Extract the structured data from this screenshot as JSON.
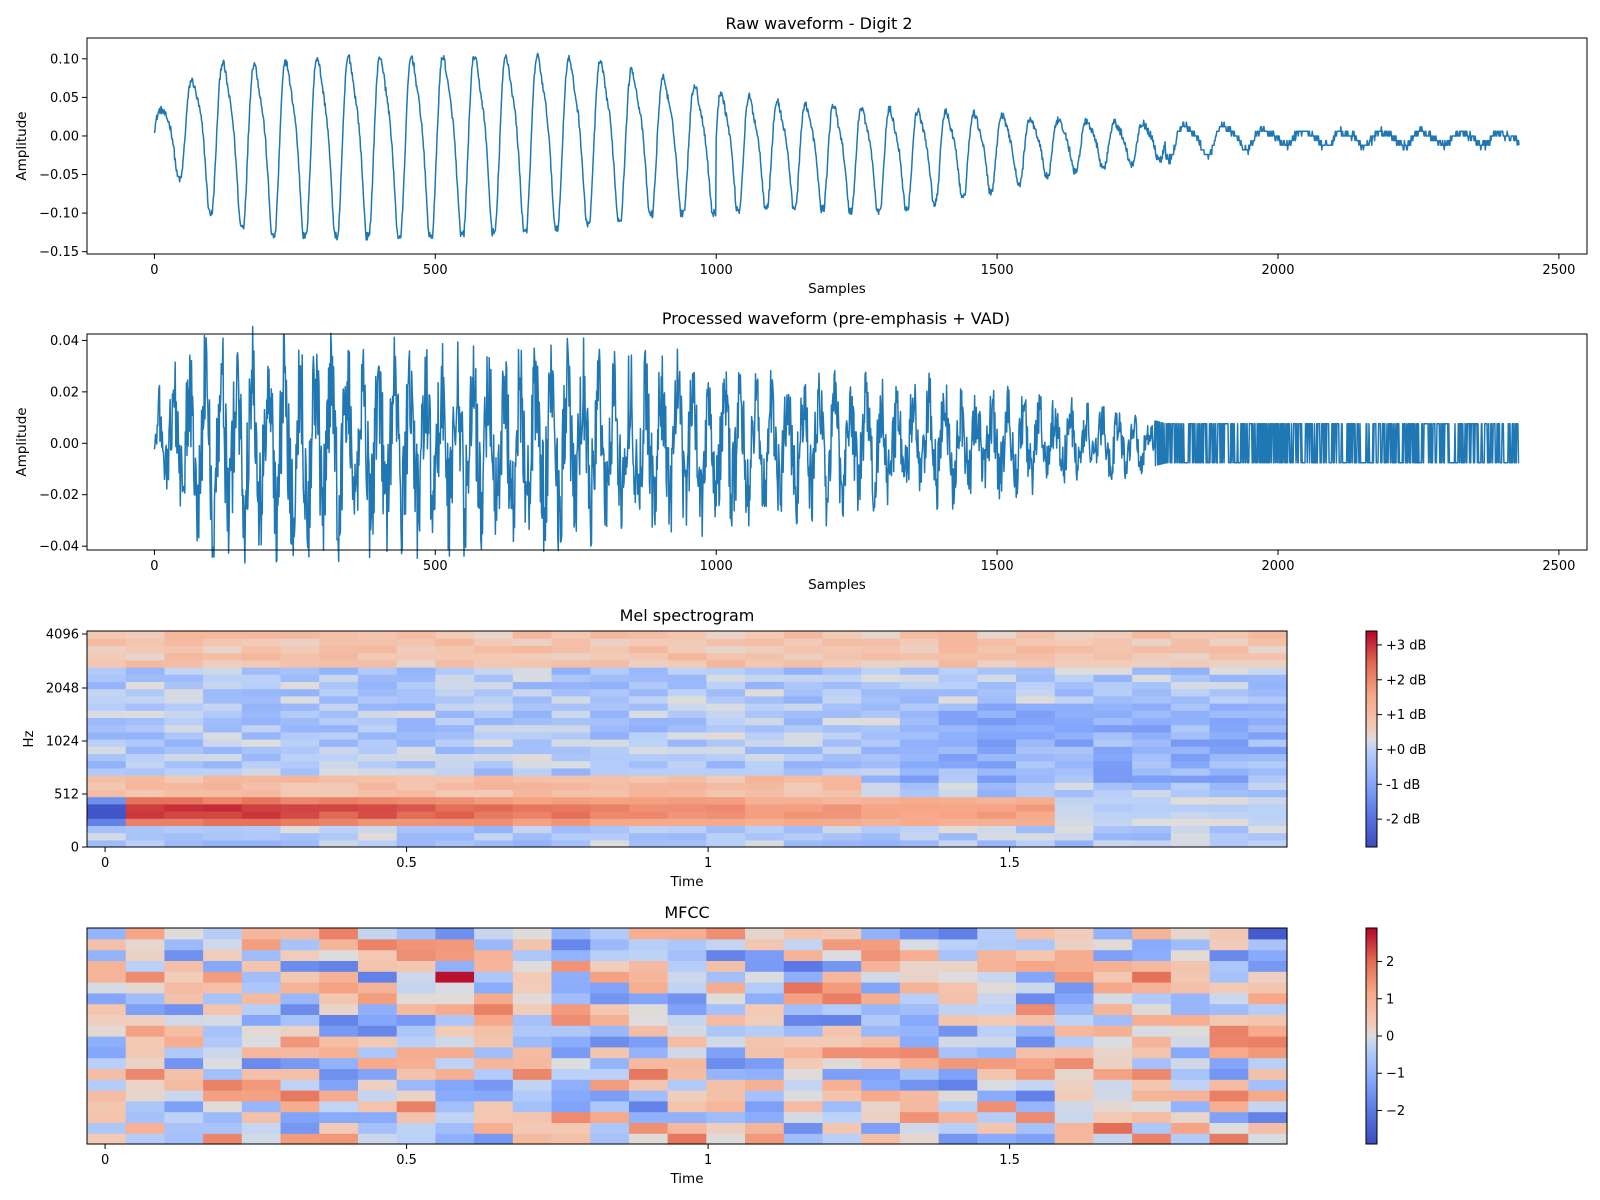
{
  "chart_data": [
    {
      "type": "line",
      "title": "Raw waveform - Digit 2",
      "xlabel": "Samples",
      "ylabel": "Amplitude",
      "xlim": [
        -120,
        2550
      ],
      "ylim": [
        -0.153,
        0.127
      ],
      "xticks": [
        0,
        500,
        1000,
        1500,
        2000,
        2500
      ],
      "xtick_labels": [
        "0",
        "500",
        "1000",
        "1500",
        "2000",
        "2500"
      ],
      "yticks": [
        0.1,
        0.05,
        0.0,
        -0.05,
        -0.1,
        -0.15
      ],
      "ytick_labels": [
        "0.10",
        "0.05",
        "0.00",
        "−0.05",
        "−0.10",
        "−0.15"
      ],
      "n_samples": 2430,
      "envelope": {
        "x": [
          0,
          50,
          100,
          200,
          300,
          500,
          700,
          800,
          900,
          1000,
          1100,
          1300,
          1500,
          1600,
          1800,
          2000,
          2430
        ],
        "peak": [
          0.03,
          0.07,
          0.11,
          0.11,
          0.12,
          0.12,
          0.12,
          0.11,
          0.09,
          0.07,
          0.055,
          0.045,
          0.035,
          0.025,
          0.02,
          0.008,
          0.005
        ],
        "trough": [
          -0.02,
          -0.06,
          -0.1,
          -0.13,
          -0.13,
          -0.13,
          -0.12,
          -0.11,
          -0.1,
          -0.1,
          -0.09,
          -0.1,
          -0.07,
          -0.05,
          -0.03,
          -0.012,
          -0.012
        ]
      },
      "series": [
        {
          "values_note": "",
          "color": "#1f77b4"
        }
      ]
    },
    {
      "type": "line",
      "title": "Processed waveform (pre-emphasis + VAD)",
      "xlabel": "Samples",
      "ylabel": "Amplitude",
      "xlim": [
        -120,
        2550
      ],
      "ylim": [
        -0.0415,
        0.0425
      ],
      "xticks": [
        0,
        500,
        1000,
        1500,
        2000,
        2500
      ],
      "xtick_labels": [
        "0",
        "500",
        "1000",
        "1500",
        "2000",
        "2500"
      ],
      "yticks": [
        0.04,
        0.02,
        0.0,
        -0.02,
        -0.04
      ],
      "ytick_labels": [
        "0.04",
        "0.02",
        "0.00",
        "−0.02",
        "−0.04"
      ],
      "n_samples": 2430,
      "envelope": {
        "x": [
          0,
          100,
          300,
          500,
          700,
          900,
          1100,
          1300,
          1500,
          1700,
          1800,
          2000,
          2430
        ],
        "peak": [
          0.03,
          0.039,
          0.037,
          0.037,
          0.036,
          0.032,
          0.025,
          0.025,
          0.02,
          0.014,
          0.008,
          0.008,
          0.008
        ],
        "trough": [
          -0.01,
          -0.039,
          -0.039,
          -0.039,
          -0.038,
          -0.033,
          -0.03,
          -0.025,
          -0.02,
          -0.014,
          -0.008,
          -0.008,
          -0.008
        ]
      },
      "series": [
        {
          "color": "#1f77b4"
        }
      ]
    },
    {
      "type": "heatmap",
      "title": "Mel spectrogram",
      "xlabel": "Time",
      "ylabel": "Hz",
      "xlim": [
        -0.03,
        1.96
      ],
      "xticks": [
        0,
        0.5,
        1,
        1.5
      ],
      "xtick_labels": [
        "0",
        "0.5",
        "1",
        "1.5"
      ],
      "yticks_labels": [
        "0",
        "512",
        "1024",
        "2048",
        "4096"
      ],
      "n_frames": 31,
      "n_bands": 30,
      "colormap": "coolwarm",
      "colorbar_range": [
        -2.8,
        3.4
      ],
      "colorbar_ticks": [
        3,
        2,
        1,
        0,
        -1,
        -2
      ],
      "colorbar_tick_labels": [
        "+3 dB",
        "+2 dB",
        "+1 dB",
        "+0 dB",
        "-1 dB",
        "-2 dB"
      ],
      "structure": "strong low-frequency band (~250 Hz) at +2 to +3 dB for t 0.05–0.6 s, fading to +1 dB by 1.4 s; mid/upper bands mostly 0 to -1.5 dB; darker blue cells near 1024 Hz at 1.0 s and near 1024/512 Hz at 1.6–1.9 s"
    },
    {
      "type": "heatmap",
      "title": "MFCC",
      "xlabel": "Time",
      "xlim": [
        -0.03,
        1.96
      ],
      "xticks": [
        0,
        0.5,
        1,
        1.5
      ],
      "xtick_labels": [
        "0",
        "0.5",
        "1",
        "1.5"
      ],
      "n_frames": 31,
      "n_coefficients": 20,
      "colormap": "coolwarm",
      "colorbar_range": [
        -2.9,
        2.9
      ],
      "colorbar_ticks": [
        2,
        1,
        0,
        -1,
        -2
      ],
      "colorbar_tick_labels": [
        "2",
        "1",
        "0",
        "−1",
        "−2"
      ]
    }
  ],
  "colors": {
    "line": "#1f77b4",
    "cmap_low": "#3b4cc0",
    "cmap_mid": "#dddddd",
    "cmap_high": "#b40426"
  }
}
